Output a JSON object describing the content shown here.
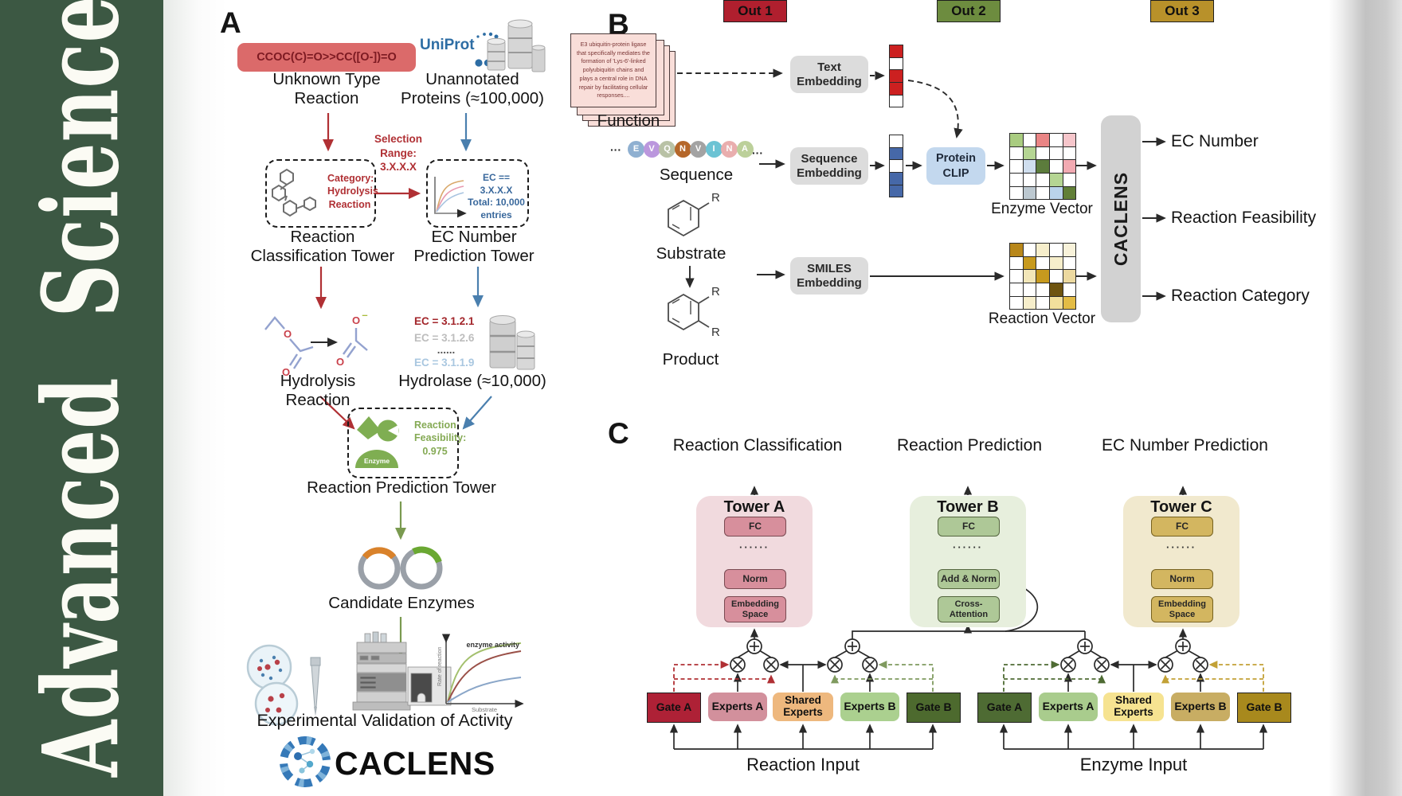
{
  "journal": {
    "name": "Advanced Science"
  },
  "panelA": {
    "label": "A",
    "smiles": "CCOC(C)=O>>CC([O-])=O",
    "uniprot": "UniProt",
    "unknown_type": "Unknown Type\nReaction",
    "unannotated": "Unannotated\nProteins (≈100,000)",
    "selection": "Selection\nRange:\n3.X.X.X",
    "category_box": "Category:\nHydrolysis\nReaction",
    "ec_box": "EC == 3.X.X.X\nTotal: 10,000\nentries",
    "reaction_tower": "Reaction\nClassification Tower",
    "ec_tower": "EC Number\nPrediction Tower",
    "hydrolysis": "Hydrolysis Reaction",
    "ec_list": [
      "EC = 3.1.2.1",
      "EC = 3.1.2.6",
      "......",
      "EC = 3.1.1.9"
    ],
    "hydrolase": "Hydrolase (≈10,000)",
    "enzyme_label": "Enzyme",
    "feasibility": "Reaction\nFeasibility:\n0.975",
    "prediction_tower": "Reaction Prediction Tower",
    "candidate": "Candidate Enzymes",
    "validation": "Experimental Validation of Activity",
    "logo_text": "CACLENS",
    "atoms": {
      "o": "O",
      "minus": "–",
      "r": "R"
    },
    "graph": {
      "curve_label": "enzyme activity",
      "ylabel": "Rate of reaction",
      "xlabel": "Substrate"
    }
  },
  "panelB": {
    "label": "B",
    "function_card": "E3 ubiquitin-protein ligase that specifically mediates the formation of 'Lys-6'-linked polyubiquitin chains and plays a central role in DNA repair by facilitating cellular responses....",
    "function": "Function",
    "sequence_letters": [
      "E",
      "V",
      "Q",
      "N",
      "V",
      "I",
      "N",
      "A"
    ],
    "sequence_colors": [
      "#8fb0d1",
      "#bb97dd",
      "#b9c2a6",
      "#b5672a",
      "#a3a3a3",
      "#6cc3d4",
      "#e9aeae",
      "#bcd09a"
    ],
    "ellipsis": "···",
    "sequence": "Sequence",
    "substrate": "Substrate",
    "product": "Product",
    "text_embedding": "Text\nEmbedding",
    "sequence_embedding": "Sequence\nEmbedding",
    "smiles_embedding": "SMILES\nEmbedding",
    "protein_clip": "Protein\nCLIP",
    "text_vector": [
      "#cc2020",
      "#ffffff",
      "#cc2020",
      "#cc2020",
      "#ffffff"
    ],
    "sequence_vector": [
      "#ffffff",
      "#4668a8",
      "#ffffff",
      "#4668a8",
      "#4668a8"
    ],
    "enzyme_matrix": [
      [
        "#a9cc80",
        "#ffffff",
        "#ea8585",
        "#ffffff",
        "#f6c6cb"
      ],
      [
        "#ffffff",
        "#b5d593",
        "#ffffff",
        "#ffffff",
        "#ffffff"
      ],
      [
        "#ffffff",
        "#cfdeee",
        "#5c7c3c",
        "#ffffff",
        "#f2aab2"
      ],
      [
        "#ffffff",
        "#ffffff",
        "#ffffff",
        "#b5d593",
        "#ffffff"
      ],
      [
        "#ffffff",
        "#bcc8d0",
        "#ffffff",
        "#bad3eb",
        "#617f37"
      ]
    ],
    "reaction_matrix": [
      [
        "#b8871a",
        "#ffffff",
        "#f6eecb",
        "#ffffff",
        "#f8f2da"
      ],
      [
        "#ffffff",
        "#c79a1e",
        "#ffffff",
        "#f6eecb",
        "#ffffff"
      ],
      [
        "#ffffff",
        "#f2e6b8",
        "#c79a1e",
        "#ffffff",
        "#ecd9a0"
      ],
      [
        "#ffffff",
        "#ffffff",
        "#ffffff",
        "#6e5410",
        "#ffffff"
      ],
      [
        "#ffffff",
        "#f6eecb",
        "#ffffff",
        "#f2e09c",
        "#e3bc45"
      ]
    ],
    "enzyme_vector": "Enzyme Vector",
    "reaction_vector": "Reaction Vector",
    "caclens": "CACLENS",
    "outputs": [
      "EC Number",
      "Reaction Feasibility",
      "Reaction Category"
    ]
  },
  "panelC": {
    "label": "C",
    "headings": [
      "Reaction Classification",
      "Reaction Prediction",
      "EC Number Prediction"
    ],
    "outs": [
      "Out 1",
      "Out 2",
      "Out 3"
    ],
    "dots": "······",
    "towers": [
      {
        "title": "Tower A",
        "blocks": [
          "FC",
          "Norm",
          "Embedding\nSpace"
        ]
      },
      {
        "title": "Tower B",
        "blocks": [
          "FC",
          "Add & Norm",
          "Cross-\nAttention"
        ]
      },
      {
        "title": "Tower C",
        "blocks": [
          "FC",
          "Norm",
          "Embedding\nSpace"
        ]
      }
    ],
    "moe_left": {
      "boxes": [
        "Gate A",
        "Experts A",
        "Shared\nExperts",
        "Experts B",
        "Gate B"
      ],
      "input": "Reaction Input"
    },
    "moe_right": {
      "boxes": [
        "Gate A",
        "Experts A",
        "Shared\nExperts",
        "Experts B",
        "Gate B"
      ],
      "input": "Enzyme Input"
    }
  },
  "colors": {
    "spine_green": "#3c5843",
    "accent_red": "#b03034",
    "accent_blue": "#4a7fae",
    "accent_green": "#7a9a50",
    "uniprot_blue": "#2d6da4",
    "out1": "#b01f2e",
    "out2": "#6d8c3f",
    "out3": "#b8912a",
    "moe_left": {
      "gateA": "#ae2136",
      "expertsA": "#d2909c",
      "shared": "#eeb87e",
      "expertsB": "#abd08f",
      "gateB": "#4d6a2e"
    },
    "moe_right": {
      "gateA": "#4e6b33",
      "expertsA": "#a9cc8d",
      "shared": "#f6e391",
      "expertsB": "#c8ad63",
      "gateB": "#a8891d"
    }
  },
  "icons": [
    "uniprot-database-icon",
    "molecule-icon",
    "curve-plot-icon",
    "enzyme-icon",
    "plasmid-icon",
    "petri-dish-icon",
    "hplc-instrument-icon",
    "kinetics-graph-icon",
    "caclens-logo-icon",
    "benzene-ring-icon",
    "multiply-node-icon",
    "add-node-icon"
  ]
}
